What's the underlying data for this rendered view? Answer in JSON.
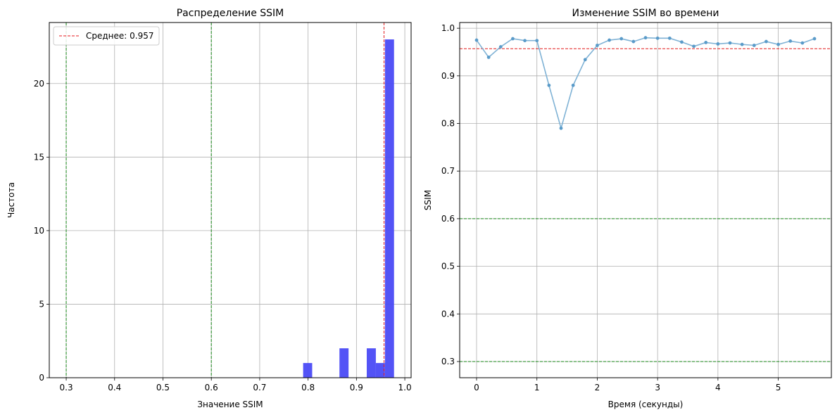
{
  "chart_data": [
    {
      "type": "bar",
      "title": "Распределение SSIM",
      "xlabel": "Значение SSIM",
      "ylabel": "Частота",
      "xlim": [
        0.265,
        1.013
      ],
      "ylim": [
        0,
        24.15
      ],
      "xticks": [
        "0.3",
        "0.4",
        "0.5",
        "0.6",
        "0.7",
        "0.8",
        "0.9",
        "1.0"
      ],
      "xtick_values": [
        0.3,
        0.4,
        0.5,
        0.6,
        0.7,
        0.8,
        0.9,
        1.0
      ],
      "yticks": [
        "0",
        "5",
        "10",
        "15",
        "20"
      ],
      "ytick_values": [
        0,
        5,
        10,
        15,
        20
      ],
      "grid": true,
      "bar_color": "#4a4af5",
      "bins": [
        {
          "x0": 0.7898,
          "x1": 0.8085,
          "value": 1
        },
        {
          "x0": 0.8649,
          "x1": 0.8837,
          "value": 2
        },
        {
          "x0": 0.9213,
          "x1": 0.9401,
          "value": 2
        },
        {
          "x0": 0.9401,
          "x1": 0.9589,
          "value": 1
        },
        {
          "x0": 0.9589,
          "x1": 0.9777,
          "value": 23
        }
      ],
      "vlines": [
        {
          "x": 0.957,
          "color": "#e41a1c",
          "style": "dashed"
        },
        {
          "x": 0.3,
          "color": "#1a8a1a",
          "style": "dashed"
        },
        {
          "x": 0.6,
          "color": "#1a8a1a",
          "style": "dashed"
        }
      ],
      "legend": {
        "position": "top-left",
        "entries": [
          {
            "label": "Среднее: 0.957",
            "color": "#e41a1c",
            "style": "dashed"
          }
        ]
      }
    },
    {
      "type": "line",
      "title": "Изменение SSIM во времени",
      "xlabel": "Время (секунды)",
      "ylabel": "SSIM",
      "xlim": [
        -0.28,
        5.88
      ],
      "ylim": [
        0.266,
        1.012
      ],
      "xticks": [
        "0",
        "1",
        "2",
        "3",
        "4",
        "5"
      ],
      "xtick_values": [
        0,
        1,
        2,
        3,
        4,
        5
      ],
      "yticks": [
        "0.3",
        "0.4",
        "0.5",
        "0.6",
        "0.7",
        "0.8",
        "0.9",
        "1.0"
      ],
      "ytick_values": [
        0.3,
        0.4,
        0.5,
        0.6,
        0.7,
        0.8,
        0.9,
        1.0
      ],
      "grid": true,
      "line_color": "#7fb2d5",
      "marker_color": "#5a9bc9",
      "x": [
        0,
        0.2,
        0.4,
        0.6,
        0.8,
        1.0,
        1.2,
        1.4,
        1.6,
        1.8,
        2.0,
        2.2,
        2.4,
        2.6,
        2.8,
        3.0,
        3.2,
        3.4,
        3.6,
        3.8,
        4.0,
        4.2,
        4.4,
        4.6,
        4.8,
        5.0,
        5.2,
        5.4,
        5.6
      ],
      "y": [
        0.975,
        0.939,
        0.961,
        0.978,
        0.974,
        0.974,
        0.88,
        0.79,
        0.88,
        0.934,
        0.964,
        0.975,
        0.978,
        0.972,
        0.98,
        0.979,
        0.979,
        0.971,
        0.962,
        0.97,
        0.967,
        0.969,
        0.966,
        0.964,
        0.972,
        0.966,
        0.973,
        0.969,
        0.978
      ],
      "hlines": [
        {
          "y": 0.957,
          "color": "#e41a1c",
          "style": "dashed"
        },
        {
          "y": 0.6,
          "color": "#1a8a1a",
          "style": "dashed"
        },
        {
          "y": 0.3,
          "color": "#1a8a1a",
          "style": "dashed"
        }
      ]
    }
  ]
}
